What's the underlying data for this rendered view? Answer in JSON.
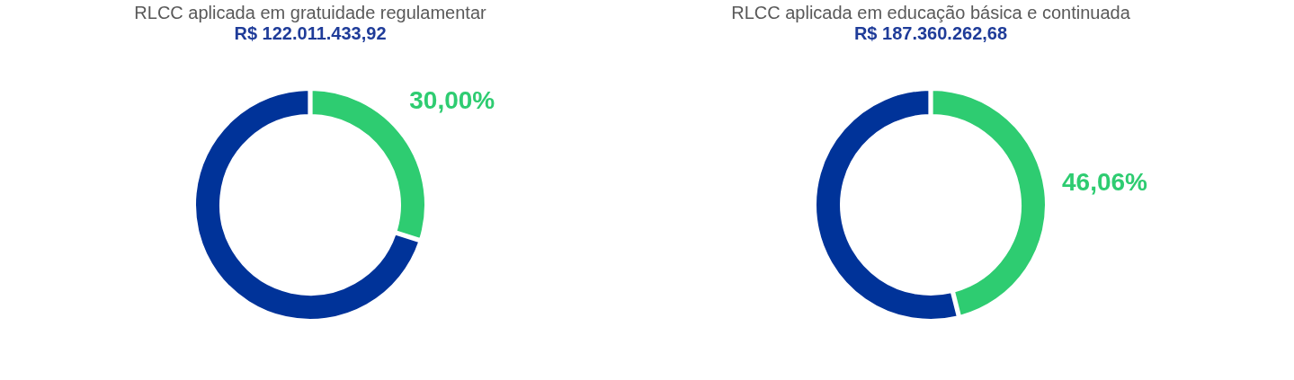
{
  "chart_data": [
    {
      "type": "donut",
      "title": "RLCC aplicada em gratuidade regulamentar",
      "subtitle": "R$ 122.011.433,92",
      "categories": [
        null,
        null
      ],
      "values": [
        30,
        70
      ],
      "colors": [
        "#2ecc71",
        "#003399"
      ],
      "value_labels": [
        "30,00%",
        null
      ],
      "legend": false
    },
    {
      "type": "donut",
      "title": "RLCC aplicada em educação básica e continuada",
      "subtitle": "R$ 187.360.262,68",
      "categories": [
        null,
        null
      ],
      "values": [
        46.06,
        53.94
      ],
      "colors": [
        "#2ecc71",
        "#003399"
      ],
      "value_labels": [
        "46,06%",
        null
      ],
      "legend": false
    }
  ]
}
